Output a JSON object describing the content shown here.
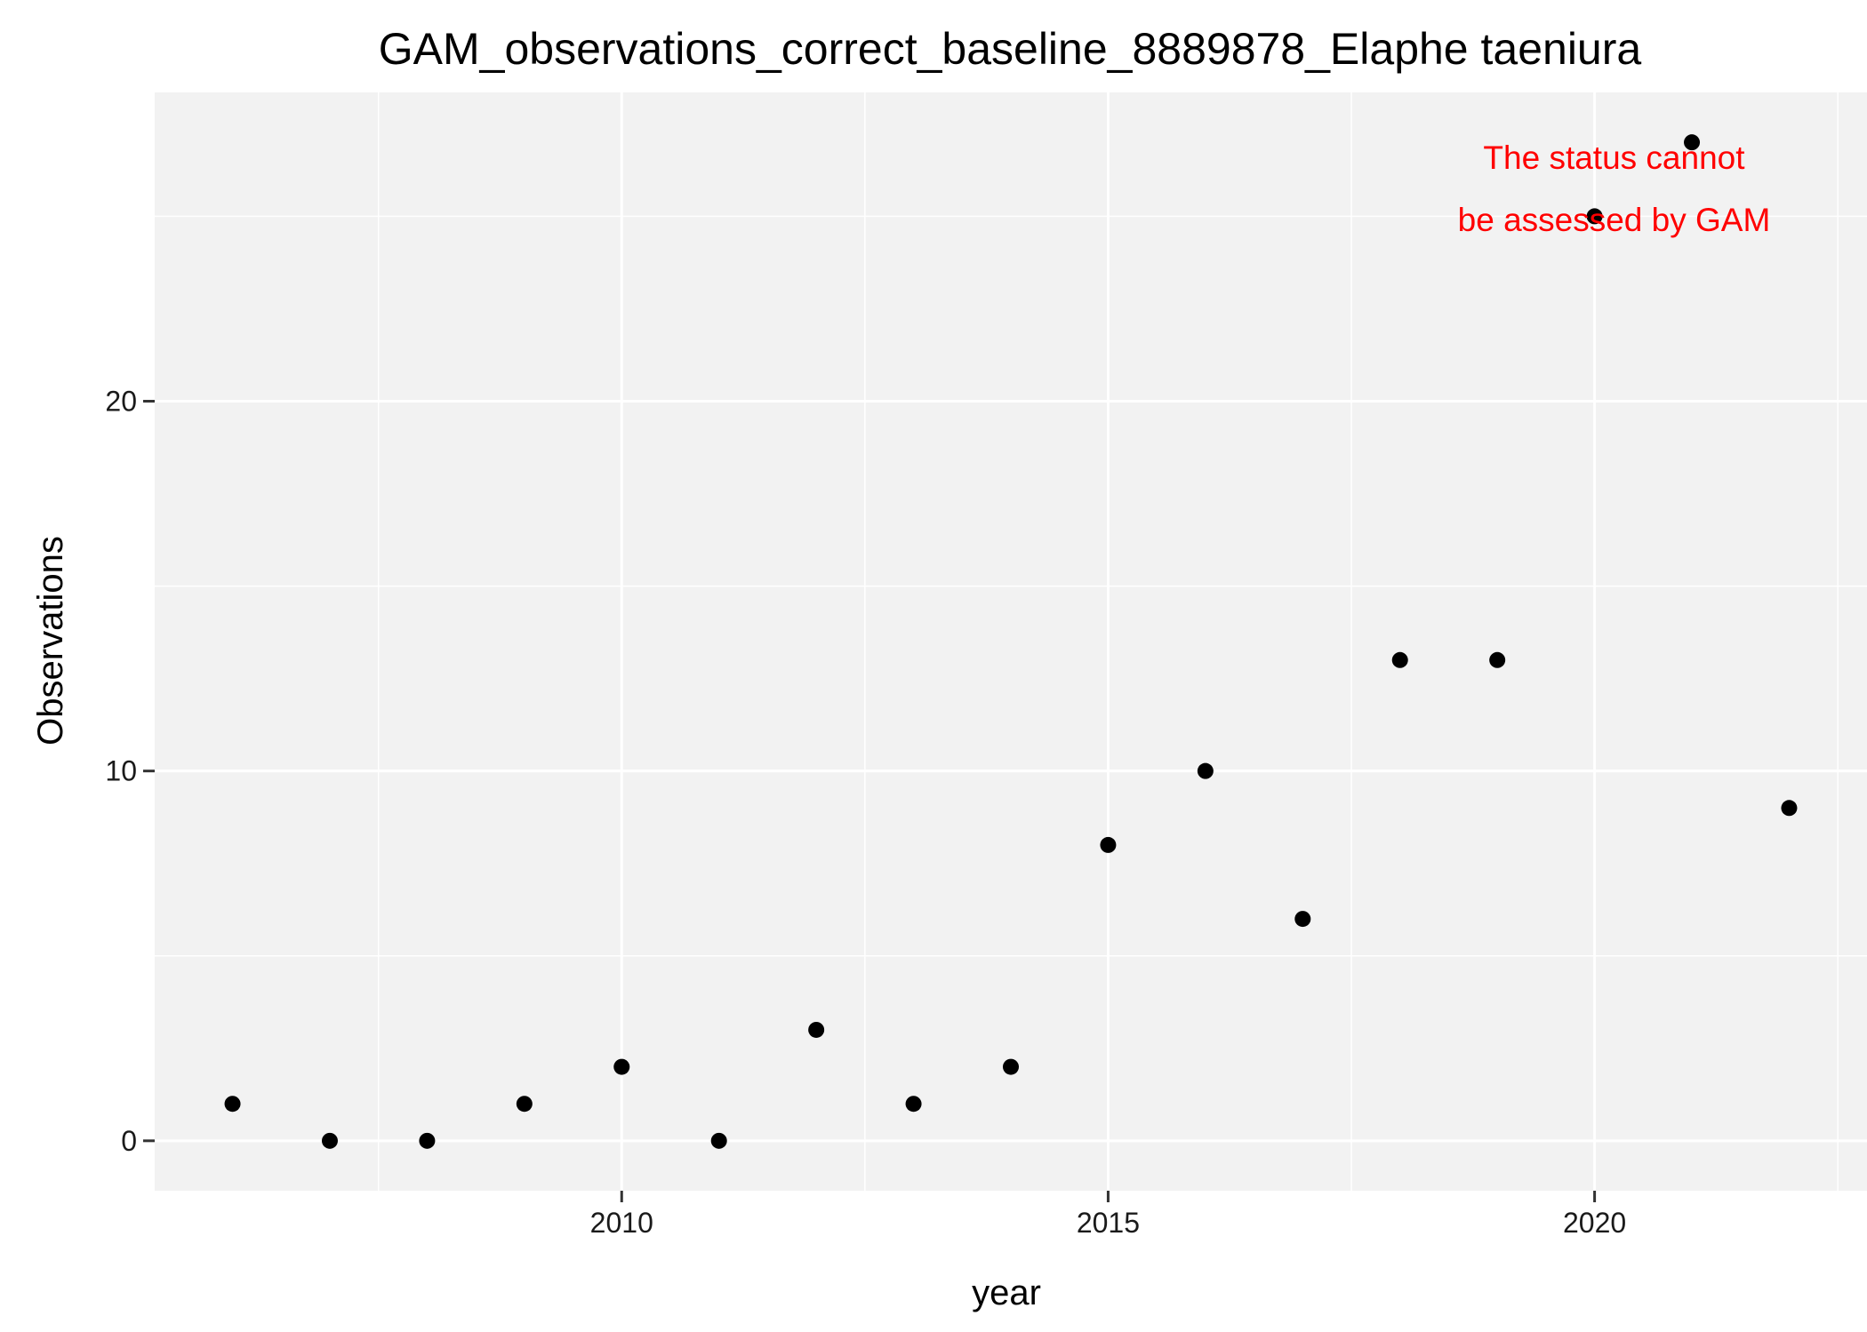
{
  "chart_data": {
    "type": "scatter",
    "title": "GAM_observations_correct_baseline_8889878_Elaphe taeniura",
    "xlabel": "year",
    "ylabel": "Observations",
    "x": [
      2006,
      2007,
      2008,
      2009,
      2010,
      2011,
      2012,
      2013,
      2014,
      2015,
      2016,
      2017,
      2018,
      2019,
      2020,
      2021,
      2022
    ],
    "y": [
      1,
      0,
      0,
      1,
      2,
      0,
      3,
      1,
      2,
      8,
      10,
      6,
      13,
      13,
      25,
      27,
      9
    ],
    "xlim": [
      2005.2,
      2022.8
    ],
    "ylim": [
      -1.35,
      28.35
    ],
    "x_ticks": [
      2010,
      2015,
      2020
    ],
    "x_tick_labels": [
      "2010",
      "2015",
      "2020"
    ],
    "x_minor_ticks": [
      2007.5,
      2012.5,
      2017.5,
      2022.5
    ],
    "y_ticks": [
      0,
      10,
      20
    ],
    "y_tick_labels": [
      "0",
      "10",
      "20"
    ],
    "y_minor_ticks": [
      5,
      15,
      25
    ],
    "grid": true,
    "legend": "none",
    "annotation": {
      "lines": [
        "The status cannot",
        "be assessed by GAM"
      ],
      "color": "#ff0000",
      "x": 2020.2
    },
    "colors": {
      "panel": "#f2f2f2",
      "grid": "#ffffff",
      "point": "#000000"
    }
  }
}
